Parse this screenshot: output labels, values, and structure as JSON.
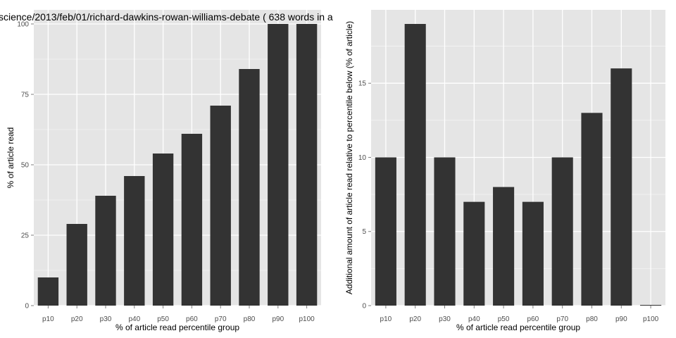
{
  "chart_data": [
    {
      "type": "bar",
      "title": "science/2013/feb/01/richard-dawkins-rowan-williams-debate ( 638 words in a",
      "xlabel": "% of article read percentile group",
      "ylabel": "% of article read",
      "categories": [
        "p10",
        "p20",
        "p30",
        "p40",
        "p50",
        "p60",
        "p70",
        "p80",
        "p90",
        "p100"
      ],
      "values": [
        10,
        29,
        39,
        46,
        54,
        61,
        71,
        84,
        100,
        100
      ],
      "yticks": [
        "0",
        "25",
        "50",
        "75",
        "100"
      ],
      "ylim": [
        0,
        105
      ],
      "grid": true,
      "colors": {
        "panel": "#e5e5e5",
        "grid": "#ffffff",
        "bar": "#333333"
      }
    },
    {
      "type": "bar",
      "title": "",
      "xlabel": "% of article read percentile group",
      "ylabel": "Additional amount of article read relative to percentile below (% of article)",
      "categories": [
        "p10",
        "p20",
        "p30",
        "p40",
        "p50",
        "p60",
        "p70",
        "p80",
        "p90",
        "p100"
      ],
      "values": [
        10,
        19,
        10,
        7,
        8,
        7,
        10,
        13,
        16,
        0
      ],
      "yticks": [
        "0",
        "5",
        "10",
        "15"
      ],
      "ylim": [
        0,
        19.95
      ],
      "grid": true,
      "colors": {
        "panel": "#e5e5e5",
        "grid": "#ffffff",
        "bar": "#333333"
      }
    }
  ]
}
